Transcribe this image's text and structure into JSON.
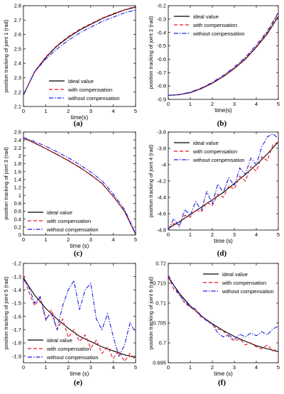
{
  "chart_data": [
    {
      "type": "line",
      "panel_label": "(a)",
      "xlabel": "time(s)",
      "ylabel": "position tracking of joint 1  (rad)",
      "xlim": [
        0,
        5
      ],
      "ylim": [
        2.1,
        2.8
      ],
      "xticks": [
        "0",
        "1",
        "2",
        "3",
        "4",
        "5"
      ],
      "yticks": [
        "2.1",
        "2.2",
        "2.3",
        "2.4",
        "2.5",
        "2.6",
        "2.7",
        "2.8"
      ],
      "legend": "lower-center",
      "series": [
        {
          "name": "ideal value",
          "color": "#000000",
          "dash": "solid",
          "x": [
            0,
            0.5,
            1,
            1.5,
            2,
            2.5,
            3,
            3.5,
            4,
            4.5,
            5
          ],
          "y": [
            2.18,
            2.34,
            2.44,
            2.52,
            2.58,
            2.63,
            2.67,
            2.71,
            2.74,
            2.77,
            2.79
          ]
        },
        {
          "name": "with compensation",
          "color": "#e8151b",
          "dash": "dashed",
          "x": [
            0,
            0.5,
            1,
            1.5,
            2,
            2.5,
            3,
            3.5,
            4,
            4.5,
            5
          ],
          "y": [
            2.18,
            2.345,
            2.445,
            2.525,
            2.585,
            2.635,
            2.675,
            2.713,
            2.745,
            2.772,
            2.795
          ]
        },
        {
          "name": "without compensation",
          "color": "#1a1ae6",
          "dash": "dashdot",
          "x": [
            0,
            0.5,
            1,
            1.5,
            2,
            2.5,
            3,
            3.5,
            4,
            4.5,
            5
          ],
          "y": [
            2.18,
            2.34,
            2.43,
            2.5,
            2.56,
            2.61,
            2.65,
            2.69,
            2.72,
            2.75,
            2.77
          ]
        }
      ]
    },
    {
      "type": "line",
      "panel_label": "(b)",
      "xlabel": "time(s)",
      "ylabel": "position tracking of joint 2  (rad)",
      "xlim": [
        0,
        5
      ],
      "ylim": [
        -0.9,
        -0.2
      ],
      "xticks": [
        "0",
        "1",
        "2",
        "3",
        "4",
        "5"
      ],
      "yticks": [
        "-0.9",
        "-0.8",
        "-0.7",
        "-0.6",
        "-0.5",
        "-0.4",
        "-0.3",
        "-0.2"
      ],
      "legend": "top-left",
      "series": [
        {
          "name": "ideal value",
          "color": "#000000",
          "dash": "solid",
          "x": [
            0,
            0.5,
            1,
            1.5,
            2,
            2.5,
            3,
            3.5,
            4,
            4.5,
            5
          ],
          "y": [
            -0.87,
            -0.865,
            -0.85,
            -0.82,
            -0.78,
            -0.73,
            -0.67,
            -0.6,
            -0.51,
            -0.41,
            -0.28
          ]
        },
        {
          "name": "with compensation",
          "color": "#e8151b",
          "dash": "dashed",
          "x": [
            0,
            0.5,
            1,
            1.5,
            2,
            2.5,
            3,
            3.5,
            4,
            4.5,
            5
          ],
          "y": [
            -0.87,
            -0.864,
            -0.848,
            -0.818,
            -0.778,
            -0.727,
            -0.666,
            -0.595,
            -0.505,
            -0.4,
            -0.26
          ]
        },
        {
          "name": "without compensation",
          "color": "#1a1ae6",
          "dash": "dashdot",
          "x": [
            0,
            0.5,
            1,
            1.5,
            2,
            2.5,
            3,
            3.5,
            4,
            4.5,
            5
          ],
          "y": [
            -0.87,
            -0.863,
            -0.846,
            -0.815,
            -0.773,
            -0.721,
            -0.659,
            -0.586,
            -0.494,
            -0.39,
            -0.25
          ]
        }
      ]
    },
    {
      "type": "line",
      "panel_label": "(c)",
      "xlabel": "time (s)",
      "ylabel": "position tracking of joint 3  (rad)",
      "xlim": [
        0,
        5
      ],
      "ylim": [
        0,
        2.6
      ],
      "xticks": [
        "0",
        "1",
        "2",
        "3",
        "4",
        "5"
      ],
      "yticks": [
        "0",
        "0.2",
        "0.4",
        "0.6",
        "0.8",
        "1",
        "1.2",
        "1.4",
        "1.6",
        "1.8",
        "2",
        "2.2",
        "2.4",
        "2.6"
      ],
      "legend": "bottom-left",
      "series": [
        {
          "name": "ideal value",
          "color": "#000000",
          "dash": "solid",
          "x": [
            0,
            0.5,
            1,
            1.5,
            2,
            2.5,
            3,
            3.5,
            4,
            4.5,
            5
          ],
          "y": [
            2.45,
            2.32,
            2.18,
            2.03,
            1.88,
            1.71,
            1.52,
            1.3,
            0.98,
            0.6,
            0.02
          ]
        },
        {
          "name": "with compensation",
          "color": "#e8151b",
          "dash": "dashed",
          "x": [
            0,
            0.5,
            1,
            1.5,
            2,
            2.5,
            3,
            3.5,
            4,
            4.5,
            5
          ],
          "y": [
            2.45,
            2.33,
            2.18,
            2.04,
            1.87,
            1.72,
            1.51,
            1.31,
            0.97,
            0.61,
            0.02
          ]
        },
        {
          "name": "without compensation",
          "color": "#1a1ae6",
          "dash": "dashdot",
          "x": [
            0,
            0.5,
            1,
            1.5,
            2,
            2.5,
            3,
            3.5,
            4,
            4.5,
            5
          ],
          "y": [
            2.46,
            2.36,
            2.24,
            2.1,
            1.95,
            1.78,
            1.59,
            1.37,
            1.04,
            0.65,
            0.03
          ]
        }
      ]
    },
    {
      "type": "line",
      "panel_label": "(d)",
      "xlabel": "time (s)",
      "ylabel": "position tracking of joint 4  (rad)",
      "xlim": [
        0,
        5
      ],
      "ylim": [
        -4.8,
        -3.6
      ],
      "xticks": [
        "0",
        "1",
        "2",
        "3",
        "4",
        "5"
      ],
      "yticks": [
        "-4.8",
        "-4.6",
        "-4.4",
        "-4.2",
        "-4",
        "-3.8",
        "-3.6"
      ],
      "legend": "top-left",
      "series": [
        {
          "name": "ideal value",
          "color": "#000000",
          "dash": "solid",
          "x": [
            0,
            0.5,
            1,
            1.5,
            2,
            2.5,
            3,
            3.5,
            4,
            4.5,
            5
          ],
          "y": [
            -4.78,
            -4.7,
            -4.61,
            -4.52,
            -4.43,
            -4.34,
            -4.23,
            -4.12,
            -4.0,
            -3.87,
            -3.72
          ]
        },
        {
          "name": "with compensation",
          "color": "#e8151b",
          "dash": "dashed",
          "x": [
            0,
            0.25,
            0.5,
            0.75,
            1,
            1.25,
            1.5,
            1.75,
            2,
            2.25,
            2.5,
            2.75,
            3,
            3.25,
            3.5,
            3.75,
            4,
            4.25,
            4.5,
            4.75,
            5
          ],
          "y": [
            -4.78,
            -4.72,
            -4.74,
            -4.62,
            -4.64,
            -4.55,
            -4.58,
            -4.46,
            -4.5,
            -4.36,
            -4.4,
            -4.26,
            -4.3,
            -4.14,
            -4.2,
            -4.02,
            -4.08,
            -3.9,
            -3.95,
            -3.76,
            -3.72
          ]
        },
        {
          "name": "without compensation",
          "color": "#1a1ae6",
          "dash": "dashdot",
          "x": [
            0,
            0.25,
            0.5,
            0.75,
            1,
            1.25,
            1.5,
            1.75,
            2,
            2.25,
            2.5,
            2.75,
            3,
            3.25,
            3.5,
            3.75,
            4,
            4.25,
            4.5,
            4.75,
            5
          ],
          "y": [
            -4.8,
            -4.66,
            -4.76,
            -4.55,
            -4.62,
            -4.45,
            -4.56,
            -4.33,
            -4.48,
            -4.24,
            -4.34,
            -4.16,
            -4.26,
            -4.04,
            -4.12,
            -3.92,
            -4.0,
            -3.78,
            -3.66,
            -3.62,
            -3.68
          ]
        }
      ]
    },
    {
      "type": "line",
      "panel_label": "(e)",
      "xlabel": "time (s)",
      "ylabel": "position tracking of joint 5  (rad)",
      "xlim": [
        0,
        5
      ],
      "ylim": [
        -1.95,
        -1.2
      ],
      "xticks": [
        "0",
        "1",
        "2",
        "3",
        "4",
        "5"
      ],
      "yticks": [
        "-1.9",
        "-1.8",
        "-1.7",
        "-1.6",
        "-1.5",
        "-1.4",
        "-1.3",
        "-1.2"
      ],
      "legend": "bottom-left",
      "series": [
        {
          "name": "ideal value",
          "color": "#000000",
          "dash": "solid",
          "x": [
            0,
            0.5,
            1,
            1.5,
            2,
            2.5,
            3,
            3.5,
            4,
            4.5,
            5
          ],
          "y": [
            -1.31,
            -1.44,
            -1.54,
            -1.62,
            -1.69,
            -1.75,
            -1.79,
            -1.83,
            -1.86,
            -1.89,
            -1.91
          ]
        },
        {
          "name": "with compensation",
          "color": "#e8151b",
          "dash": "dashed",
          "x": [
            0,
            0.25,
            0.5,
            0.75,
            1,
            1.25,
            1.5,
            1.75,
            2,
            2.25,
            2.5,
            2.75,
            3,
            3.25,
            3.5,
            3.75,
            4,
            4.25,
            4.5,
            4.75,
            5
          ],
          "y": [
            -1.29,
            -1.42,
            -1.52,
            -1.46,
            -1.63,
            -1.55,
            -1.7,
            -1.62,
            -1.76,
            -1.7,
            -1.79,
            -1.74,
            -1.84,
            -1.78,
            -1.88,
            -1.83,
            -1.92,
            -1.86,
            -1.94,
            -1.88,
            -1.93
          ]
        },
        {
          "name": "without compensation",
          "color": "#1a1ae6",
          "dash": "dashdot",
          "x": [
            0,
            0.25,
            0.5,
            0.75,
            1,
            1.25,
            1.5,
            1.75,
            2,
            2.25,
            2.5,
            2.75,
            3,
            3.25,
            3.5,
            3.75,
            4,
            4.25,
            4.5,
            4.75,
            5
          ],
          "y": [
            -1.32,
            -1.38,
            -1.5,
            -1.45,
            -1.62,
            -1.58,
            -1.7,
            -1.52,
            -1.4,
            -1.33,
            -1.55,
            -1.4,
            -1.35,
            -1.62,
            -1.7,
            -1.58,
            -1.75,
            -1.9,
            -1.82,
            -1.65,
            -1.72
          ]
        }
      ]
    },
    {
      "type": "line",
      "panel_label": "(f)",
      "xlabel": "time (s)",
      "ylabel": "position tracking of joint 6  (rad)",
      "xlim": [
        0,
        5
      ],
      "ylim": [
        0.695,
        0.72
      ],
      "xticks": [
        "0",
        "1",
        "2",
        "3",
        "4",
        "5"
      ],
      "yticks": [
        "0.695",
        "0.7",
        "0.705",
        "0.71",
        "0.715",
        "0.72"
      ],
      "legend": "top-right",
      "series": [
        {
          "name": "ideal value",
          "color": "#000000",
          "dash": "solid",
          "x": [
            0,
            0.5,
            1,
            1.5,
            2,
            2.5,
            3,
            3.5,
            4,
            4.5,
            5
          ],
          "y": [
            0.7165,
            0.7125,
            0.7093,
            0.7068,
            0.7048,
            0.7031,
            0.7016,
            0.7004,
            0.6993,
            0.6985,
            0.6978
          ]
        },
        {
          "name": "with compensation",
          "color": "#e8151b",
          "dash": "dashed",
          "x": [
            0,
            0.25,
            0.5,
            0.75,
            1,
            1.25,
            1.5,
            1.75,
            2,
            2.25,
            2.5,
            2.75,
            3,
            3.25,
            3.5,
            3.75,
            4,
            4.25,
            4.5,
            4.75,
            5
          ],
          "y": [
            0.7168,
            0.7135,
            0.7122,
            0.71,
            0.709,
            0.708,
            0.7065,
            0.7058,
            0.7045,
            0.7035,
            0.703,
            0.7015,
            0.7005,
            0.701,
            0.6995,
            0.7,
            0.699,
            0.6985,
            0.6995,
            0.698,
            0.6985
          ]
        },
        {
          "name": "without compensation",
          "color": "#1a1ae6",
          "dash": "dashdot",
          "x": [
            0,
            0.25,
            0.5,
            0.75,
            1,
            1.25,
            1.5,
            1.75,
            2,
            2.25,
            2.5,
            2.75,
            3,
            3.25,
            3.5,
            3.75,
            4,
            4.25,
            4.5,
            4.75,
            5
          ],
          "y": [
            0.717,
            0.7145,
            0.712,
            0.7105,
            0.709,
            0.7085,
            0.7068,
            0.7055,
            0.7048,
            0.7025,
            0.7015,
            0.702,
            0.7008,
            0.7022,
            0.7015,
            0.7025,
            0.7018,
            0.7028,
            0.702,
            0.7035,
            0.7042
          ]
        }
      ]
    }
  ]
}
